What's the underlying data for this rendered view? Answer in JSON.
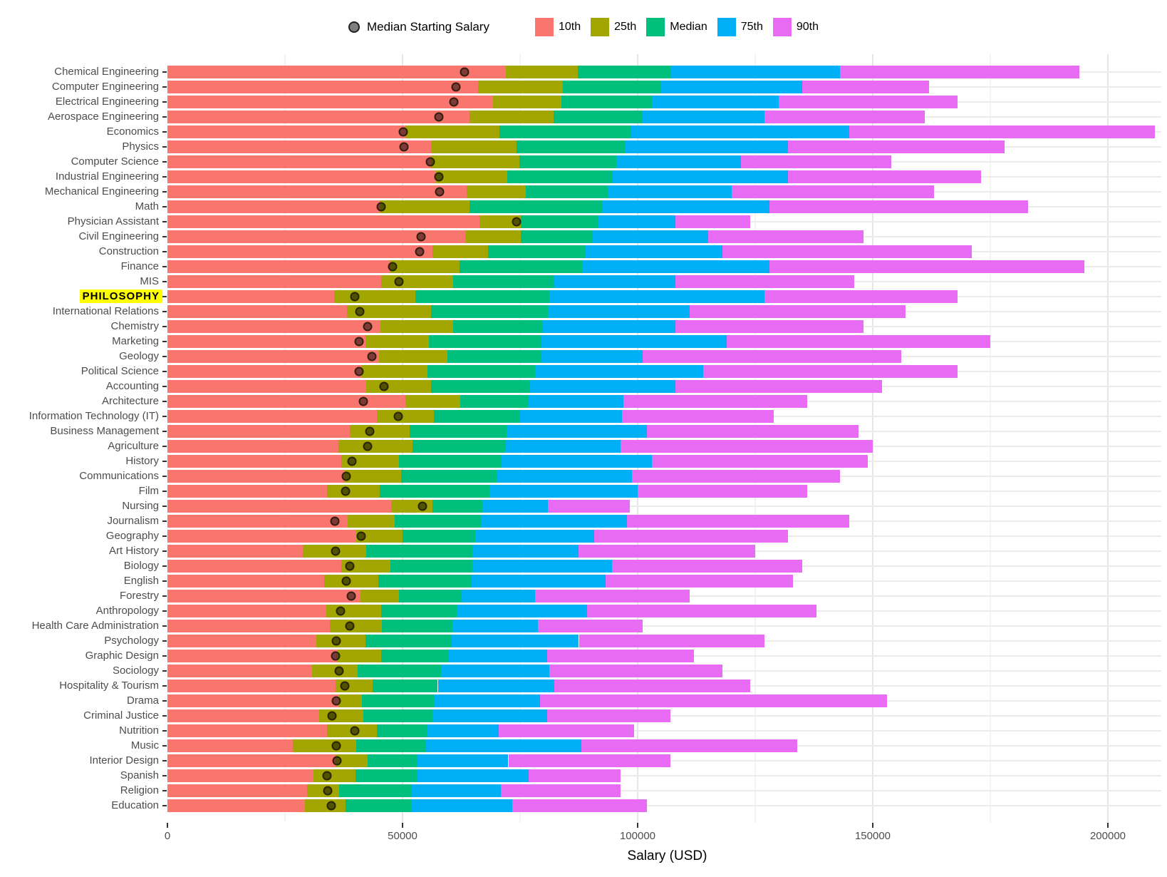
{
  "chart_data": {
    "type": "bar",
    "orientation": "horizontal-stacked",
    "title": "",
    "xlabel": "Salary (USD)",
    "ylabel": "",
    "xlim": [
      0,
      210000
    ],
    "x_ticks": [
      {
        "value": 0,
        "label": "0"
      },
      {
        "value": 50000,
        "label": "50000"
      },
      {
        "value": 100000,
        "label": "100000"
      },
      {
        "value": 150000,
        "label": "150000"
      },
      {
        "value": 200000,
        "label": "200000"
      }
    ],
    "x_minor_gridline_step": 25000,
    "legend_position": "top",
    "point_legend_label": "Median Starting Salary",
    "percentiles": [
      {
        "label": "10th",
        "color": "#F8766D"
      },
      {
        "label": "25th",
        "color": "#A3A500"
      },
      {
        "label": "Median",
        "color": "#00BF7D"
      },
      {
        "label": "75th",
        "color": "#00B0F6"
      },
      {
        "label": "90th",
        "color": "#E76BF3"
      }
    ],
    "colors": {
      "dot": "rgba(0,0,0,0.5)",
      "highlight_background": "#FFFF00",
      "grid_major": "#E6E6E6",
      "grid_minor": "#F4F4F4",
      "axis_text": "#4D4D4D"
    },
    "majors": [
      {
        "label": "Chemical Engineering",
        "highlight": false,
        "start": 63200,
        "p10": 71900,
        "p25": 87300,
        "p50": 107000,
        "p75": 143000,
        "p90": 194000
      },
      {
        "label": "Computer Engineering",
        "highlight": false,
        "start": 61400,
        "p10": 66100,
        "p25": 84100,
        "p50": 105000,
        "p75": 135000,
        "p90": 162000
      },
      {
        "label": "Electrical Engineering",
        "highlight": false,
        "start": 60900,
        "p10": 69300,
        "p25": 83800,
        "p50": 103000,
        "p75": 130000,
        "p90": 168000
      },
      {
        "label": "Aerospace Engineering",
        "highlight": false,
        "start": 57700,
        "p10": 64300,
        "p25": 82100,
        "p50": 101000,
        "p75": 127000,
        "p90": 161000
      },
      {
        "label": "Economics",
        "highlight": false,
        "start": 50100,
        "p10": 50600,
        "p25": 70600,
        "p50": 98600,
        "p75": 145000,
        "p90": 210000
      },
      {
        "label": "Physics",
        "highlight": false,
        "start": 50300,
        "p10": 56000,
        "p25": 74200,
        "p50": 97300,
        "p75": 132000,
        "p90": 178000
      },
      {
        "label": "Computer Science",
        "highlight": false,
        "start": 55900,
        "p10": 56000,
        "p25": 74900,
        "p50": 95500,
        "p75": 122000,
        "p90": 154000
      },
      {
        "label": "Industrial Engineering",
        "highlight": false,
        "start": 57700,
        "p10": 57100,
        "p25": 72300,
        "p50": 94700,
        "p75": 132000,
        "p90": 173000
      },
      {
        "label": "Mechanical Engineering",
        "highlight": false,
        "start": 57900,
        "p10": 63700,
        "p25": 76200,
        "p50": 93600,
        "p75": 120000,
        "p90": 163000
      },
      {
        "label": "Math",
        "highlight": false,
        "start": 45400,
        "p10": 45200,
        "p25": 64200,
        "p50": 92400,
        "p75": 128000,
        "p90": 183000
      },
      {
        "label": "Physician Assistant",
        "highlight": false,
        "start": 74300,
        "p10": 66400,
        "p25": 75200,
        "p50": 91700,
        "p75": 108000,
        "p90": 124000
      },
      {
        "label": "Civil Engineering",
        "highlight": false,
        "start": 53900,
        "p10": 63400,
        "p25": 75100,
        "p50": 90500,
        "p75": 115000,
        "p90": 148000
      },
      {
        "label": "Construction",
        "highlight": false,
        "start": 53700,
        "p10": 56300,
        "p25": 68200,
        "p50": 88900,
        "p75": 118000,
        "p90": 171000
      },
      {
        "label": "Finance",
        "highlight": false,
        "start": 47900,
        "p10": 47200,
        "p25": 62100,
        "p50": 88300,
        "p75": 128000,
        "p90": 195000
      },
      {
        "label": "MIS",
        "highlight": false,
        "start": 49200,
        "p10": 45500,
        "p25": 60800,
        "p50": 82300,
        "p75": 108000,
        "p90": 146000
      },
      {
        "label": "PHILOSOPHY",
        "highlight": true,
        "start": 39900,
        "p10": 35500,
        "p25": 52800,
        "p50": 81200,
        "p75": 127000,
        "p90": 168000
      },
      {
        "label": "International Relations",
        "highlight": false,
        "start": 40900,
        "p10": 38200,
        "p25": 56000,
        "p50": 80900,
        "p75": 111000,
        "p90": 157000
      },
      {
        "label": "Chemistry",
        "highlight": false,
        "start": 42600,
        "p10": 45300,
        "p25": 60700,
        "p50": 79900,
        "p75": 108000,
        "p90": 148000
      },
      {
        "label": "Marketing",
        "highlight": false,
        "start": 40800,
        "p10": 42100,
        "p25": 55600,
        "p50": 79600,
        "p75": 119000,
        "p90": 175000
      },
      {
        "label": "Geology",
        "highlight": false,
        "start": 43500,
        "p10": 45000,
        "p25": 59600,
        "p50": 79500,
        "p75": 101000,
        "p90": 156000
      },
      {
        "label": "Political Science",
        "highlight": false,
        "start": 40800,
        "p10": 41200,
        "p25": 55300,
        "p50": 78200,
        "p75": 114000,
        "p90": 168000
      },
      {
        "label": "Accounting",
        "highlight": false,
        "start": 46000,
        "p10": 42200,
        "p25": 56100,
        "p50": 77100,
        "p75": 108000,
        "p90": 152000
      },
      {
        "label": "Architecture",
        "highlight": false,
        "start": 41600,
        "p10": 50600,
        "p25": 62200,
        "p50": 76800,
        "p75": 97000,
        "p90": 136000
      },
      {
        "label": "Information Technology (IT)",
        "highlight": false,
        "start": 49100,
        "p10": 44500,
        "p25": 56700,
        "p50": 74800,
        "p75": 96700,
        "p90": 129000
      },
      {
        "label": "Business Management",
        "highlight": false,
        "start": 43000,
        "p10": 38800,
        "p25": 51500,
        "p50": 72100,
        "p75": 102000,
        "p90": 147000
      },
      {
        "label": "Agriculture",
        "highlight": false,
        "start": 42600,
        "p10": 36300,
        "p25": 52100,
        "p50": 71900,
        "p75": 96300,
        "p90": 150000
      },
      {
        "label": "History",
        "highlight": false,
        "start": 39200,
        "p10": 37000,
        "p25": 49200,
        "p50": 71000,
        "p75": 103000,
        "p90": 149000
      },
      {
        "label": "Communications",
        "highlight": false,
        "start": 38100,
        "p10": 37500,
        "p25": 49700,
        "p50": 70000,
        "p75": 98800,
        "p90": 143000
      },
      {
        "label": "Film",
        "highlight": false,
        "start": 37900,
        "p10": 33900,
        "p25": 45100,
        "p50": 68500,
        "p75": 100000,
        "p90": 136000
      },
      {
        "label": "Nursing",
        "highlight": false,
        "start": 54200,
        "p10": 47600,
        "p25": 56400,
        "p50": 67000,
        "p75": 80900,
        "p90": 98300
      },
      {
        "label": "Journalism",
        "highlight": false,
        "start": 35600,
        "p10": 38400,
        "p25": 48300,
        "p50": 66700,
        "p75": 97700,
        "p90": 145000
      },
      {
        "label": "Geography",
        "highlight": false,
        "start": 41200,
        "p10": 40100,
        "p25": 50000,
        "p50": 65500,
        "p75": 90800,
        "p90": 132000
      },
      {
        "label": "Art History",
        "highlight": false,
        "start": 35800,
        "p10": 28800,
        "p25": 42200,
        "p50": 64900,
        "p75": 87400,
        "p90": 125000
      },
      {
        "label": "Biology",
        "highlight": false,
        "start": 38800,
        "p10": 36900,
        "p25": 47400,
        "p50": 64800,
        "p75": 94500,
        "p90": 135000
      },
      {
        "label": "English",
        "highlight": false,
        "start": 38000,
        "p10": 33400,
        "p25": 44800,
        "p50": 64700,
        "p75": 93200,
        "p90": 133000
      },
      {
        "label": "Forestry",
        "highlight": false,
        "start": 39100,
        "p10": 41000,
        "p25": 49300,
        "p50": 62600,
        "p75": 78200,
        "p90": 111000
      },
      {
        "label": "Anthropology",
        "highlight": false,
        "start": 36800,
        "p10": 33800,
        "p25": 45500,
        "p50": 61500,
        "p75": 89300,
        "p90": 138000
      },
      {
        "label": "Health Care Administration",
        "highlight": false,
        "start": 38800,
        "p10": 34600,
        "p25": 45600,
        "p50": 60600,
        "p75": 78800,
        "p90": 101000
      },
      {
        "label": "Psychology",
        "highlight": false,
        "start": 35900,
        "p10": 31600,
        "p25": 42100,
        "p50": 60400,
        "p75": 87500,
        "p90": 127000
      },
      {
        "label": "Graphic Design",
        "highlight": false,
        "start": 35700,
        "p10": 36000,
        "p25": 45500,
        "p50": 59800,
        "p75": 80800,
        "p90": 112000
      },
      {
        "label": "Sociology",
        "highlight": false,
        "start": 36500,
        "p10": 30700,
        "p25": 40400,
        "p50": 58200,
        "p75": 81200,
        "p90": 118000
      },
      {
        "label": "Hospitality & Tourism",
        "highlight": false,
        "start": 37800,
        "p10": 35800,
        "p25": 43600,
        "p50": 57500,
        "p75": 82300,
        "p90": 124000
      },
      {
        "label": "Drama",
        "highlight": false,
        "start": 35900,
        "p10": 36300,
        "p25": 41300,
        "p50": 56600,
        "p75": 79300,
        "p90": 153000
      },
      {
        "label": "Criminal Justice",
        "highlight": false,
        "start": 35000,
        "p10": 32200,
        "p25": 41600,
        "p50": 56300,
        "p75": 80700,
        "p90": 107000
      },
      {
        "label": "Nutrition",
        "highlight": false,
        "start": 39900,
        "p10": 33900,
        "p25": 44500,
        "p50": 55300,
        "p75": 70500,
        "p90": 99200
      },
      {
        "label": "Music",
        "highlight": false,
        "start": 35900,
        "p10": 26700,
        "p25": 40200,
        "p50": 55000,
        "p75": 88000,
        "p90": 134000
      },
      {
        "label": "Interior Design",
        "highlight": false,
        "start": 36100,
        "p10": 35700,
        "p25": 42600,
        "p50": 53200,
        "p75": 72500,
        "p90": 107000
      },
      {
        "label": "Spanish",
        "highlight": false,
        "start": 34000,
        "p10": 31000,
        "p25": 40000,
        "p50": 53100,
        "p75": 76800,
        "p90": 96400
      },
      {
        "label": "Religion",
        "highlight": false,
        "start": 34100,
        "p10": 29700,
        "p25": 36500,
        "p50": 52000,
        "p75": 70900,
        "p90": 96400
      },
      {
        "label": "Education",
        "highlight": false,
        "start": 34900,
        "p10": 29300,
        "p25": 37900,
        "p50": 52000,
        "p75": 73400,
        "p90": 102000
      }
    ]
  }
}
